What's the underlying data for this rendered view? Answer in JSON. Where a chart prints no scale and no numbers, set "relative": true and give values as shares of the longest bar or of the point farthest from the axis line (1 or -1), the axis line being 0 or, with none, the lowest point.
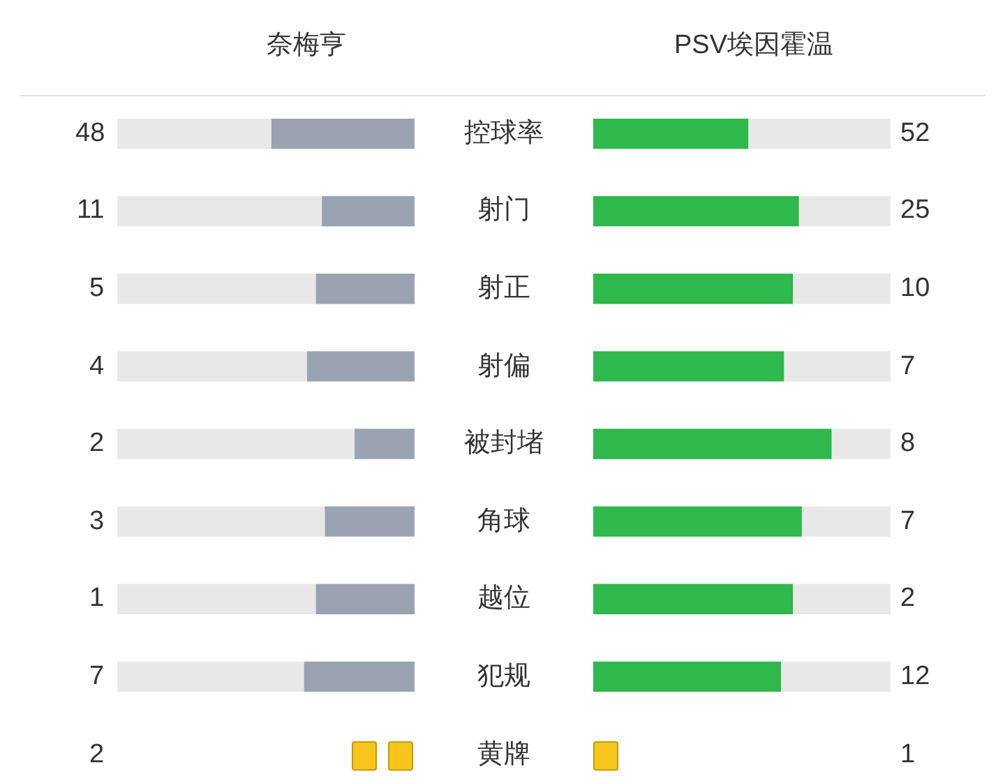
{
  "chart_data": [
    {
      "type": "bar",
      "orientation": "horizontal",
      "stacked": true,
      "relative": true,
      "tick_labels": "y",
      "legend": false,
      "categories": [
        "控球率",
        "射门",
        "射正",
        "射偏",
        "被封堵",
        "角球",
        "越位",
        "犯规",
        "黄牌"
      ],
      "series": [
        {
          "name": "奈梅亨",
          "color": "#9ba2b1",
          "values": [
            0.48,
            0.31,
            0.33,
            0.36,
            0.2,
            0.3,
            0.33,
            0.37,
            null
          ]
        },
        {
          "color": "#e8e8e8",
          "values": [
            0.52,
            0.69,
            0.67,
            0.64,
            0.8,
            0.7,
            0.67,
            0.63,
            null
          ]
        }
      ],
      "annotations": [
        "48",
        "11",
        "5",
        "4",
        "2",
        "3",
        "1",
        "7",
        "2"
      ]
    },
    {
      "type": "bar",
      "orientation": "horizontal",
      "stacked": true,
      "relative": true,
      "tick_labels": false,
      "legend": false,
      "categories": [
        null,
        null,
        null,
        null,
        null,
        null,
        null,
        null,
        null
      ],
      "series": [
        {
          "name": "PSV埃因霍温",
          "color": "#2fb84b",
          "values": [
            0.52,
            0.69,
            0.67,
            0.64,
            0.8,
            0.7,
            0.67,
            0.63,
            null
          ]
        },
        {
          "color": "#e8e8e8",
          "values": [
            0.48,
            0.31,
            0.33,
            0.36,
            0.2,
            0.3,
            0.33,
            0.37,
            null
          ]
        }
      ],
      "annotations": [
        "52",
        "25",
        "10",
        "7",
        "8",
        "7",
        "2",
        "12",
        "1"
      ]
    }
  ]
}
